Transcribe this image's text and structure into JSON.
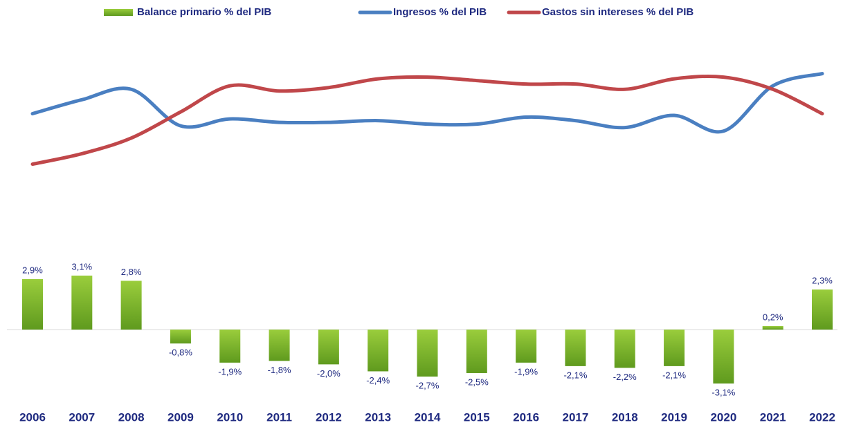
{
  "chart_data": {
    "type": "combo",
    "categories": [
      "2006",
      "2007",
      "2008",
      "2009",
      "2010",
      "2011",
      "2012",
      "2013",
      "2014",
      "2015",
      "2016",
      "2017",
      "2018",
      "2019",
      "2020",
      "2021",
      "2022"
    ],
    "ylim": [
      -4.2,
      17
    ],
    "series": [
      {
        "name": "Balance primario % del PIB",
        "type": "bar",
        "color": "#7cb72f",
        "values": [
          2.9,
          3.1,
          2.8,
          -0.8,
          -1.9,
          -1.8,
          -2.0,
          -2.4,
          -2.7,
          -2.5,
          -1.9,
          -2.1,
          -2.2,
          -2.1,
          -3.1,
          0.2,
          2.3
        ],
        "value_labels": [
          "2,9%",
          "3,1%",
          "2,8%",
          "-0,8%",
          "-1,9%",
          "-1,8%",
          "-2,0%",
          "-2,4%",
          "-2,7%",
          "-2,5%",
          "-1,9%",
          "-2,1%",
          "-2,2%",
          "-2,1%",
          "-3,1%",
          "0,2%",
          "2,3%"
        ]
      },
      {
        "name": "Ingresos % del PIB",
        "type": "line",
        "color": "#4a7fc1",
        "values": [
          12.4,
          13.2,
          13.8,
          11.7,
          12.1,
          11.9,
          11.9,
          12.0,
          11.8,
          11.8,
          12.2,
          12.0,
          11.6,
          12.3,
          11.4,
          14.0,
          14.7
        ]
      },
      {
        "name": "Gastos sin intereses % del PIB",
        "type": "line",
        "color": "#c0474a",
        "values": [
          9.5,
          10.1,
          11.0,
          12.5,
          14.0,
          13.7,
          13.9,
          14.4,
          14.5,
          14.3,
          14.1,
          14.1,
          13.8,
          14.4,
          14.5,
          13.8,
          12.4
        ]
      }
    ]
  }
}
